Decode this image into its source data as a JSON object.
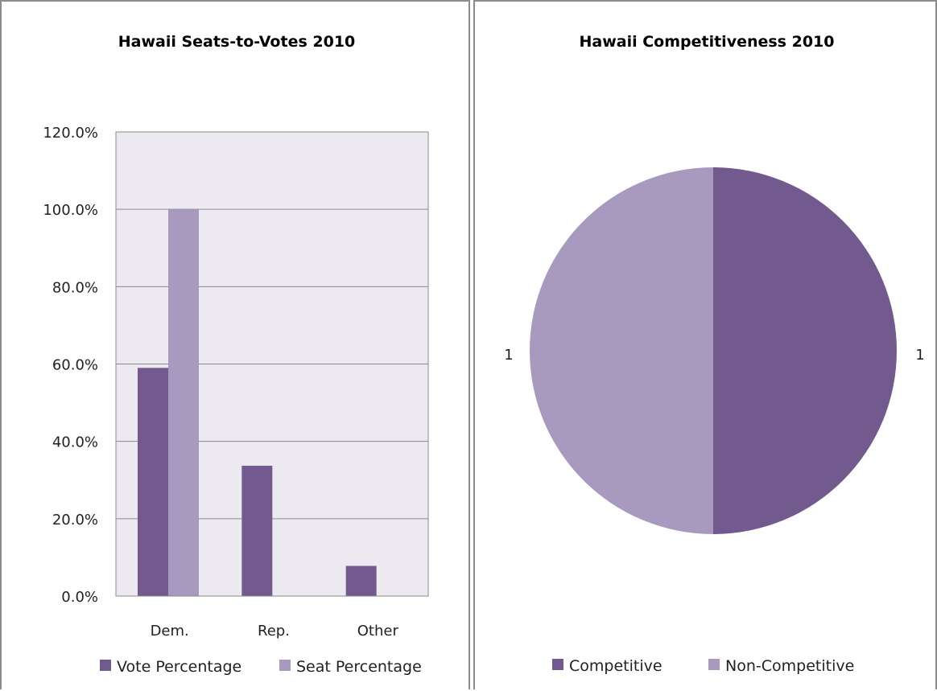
{
  "colors": {
    "vote": "#725a8f",
    "seat": "#a89abe",
    "plot_bg": "#ede9f0",
    "grid": "#8a8a8a"
  },
  "chart_data": [
    {
      "type": "bar",
      "title": "Hawaii Seats-to-Votes 2010",
      "categories": [
        "Dem.",
        "Rep.",
        "Other"
      ],
      "series": [
        {
          "name": "Vote Percentage",
          "values": [
            59.0,
            33.7,
            7.8
          ]
        },
        {
          "name": "Seat Percentage",
          "values": [
            100.0,
            0,
            0
          ]
        }
      ],
      "y_ticks": [
        "0.0%",
        "20.0%",
        "40.0%",
        "60.0%",
        "80.0%",
        "100.0%",
        "120.0%"
      ],
      "ylim": [
        0,
        120
      ],
      "grid": true,
      "legend_position": "bottom"
    },
    {
      "type": "pie",
      "title": "Hawaii Competitiveness 2010",
      "labels": [
        "Competitive",
        "Non-Competitive"
      ],
      "values": [
        1,
        1
      ],
      "data_labels": [
        "1",
        "1"
      ],
      "legend_position": "bottom"
    }
  ]
}
